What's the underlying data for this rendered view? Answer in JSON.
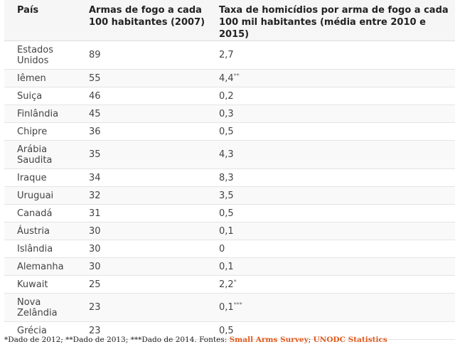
{
  "table": {
    "headers": {
      "country": "País",
      "guns": "Armas de fogo a cada 100 habitantes (2007)",
      "rate": "Taxa de homicídios por arma de fogo a cada 100 mil habitantes (média entre 2010 e 2015)"
    },
    "rows": [
      {
        "country": "Estados Unidos",
        "guns": "89",
        "rate": "2,7",
        "mark": ""
      },
      {
        "country": "Iêmen",
        "guns": "55",
        "rate": "4,4",
        "mark": "**"
      },
      {
        "country": "Suiça",
        "guns": "46",
        "rate": "0,2",
        "mark": ""
      },
      {
        "country": "Finlândia",
        "guns": "45",
        "rate": "0,3",
        "mark": ""
      },
      {
        "country": "Chipre",
        "guns": "36",
        "rate": "0,5",
        "mark": ""
      },
      {
        "country": "Arábia Saudita",
        "guns": "35",
        "rate": "4,3",
        "mark": ""
      },
      {
        "country": "Iraque",
        "guns": "34",
        "rate": "8,3",
        "mark": ""
      },
      {
        "country": "Uruguai",
        "guns": "32",
        "rate": "3,5",
        "mark": ""
      },
      {
        "country": "Canadá",
        "guns": "31",
        "rate": "0,5",
        "mark": ""
      },
      {
        "country": "Áustria",
        "guns": "30",
        "rate": "0,1",
        "mark": ""
      },
      {
        "country": "Islândia",
        "guns": "30",
        "rate": "0",
        "mark": ""
      },
      {
        "country": "Alemanha",
        "guns": "30",
        "rate": "0,1",
        "mark": ""
      },
      {
        "country": "Kuwait",
        "guns": "25",
        "rate": "2,2",
        "mark": "*"
      },
      {
        "country": "Nova Zelândia",
        "guns": "23",
        "rate": "0,1",
        "mark": "***"
      },
      {
        "country": "Grécia",
        "guns": "23",
        "rate": "0,5",
        "mark": ""
      }
    ]
  },
  "footnote": {
    "text": "*Dado de 2012; **Dado de 2013; ***Dado de 2014. Fontes: ",
    "source1": "Small Arms Survey",
    "separator": ";",
    "source2": "UNODC Statistics",
    "link_color": "#e05a1c"
  }
}
